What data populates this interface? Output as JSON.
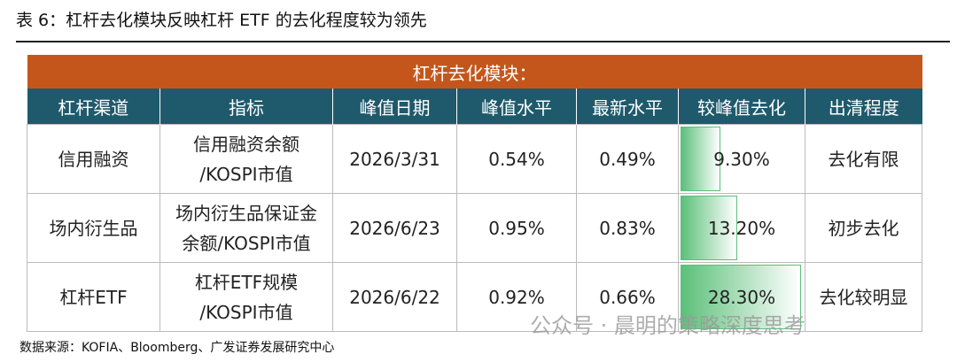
{
  "header": {
    "title": "表 6：杠杆去化模块反映杠杆 ETF 的去化程度较为领先"
  },
  "table": {
    "section_title": "杠杆去化模块：",
    "columns": [
      "杠杆渠道",
      "指标",
      "峰值日期",
      "峰值水平",
      "最新水平",
      "较峰值去化",
      "出清程度"
    ],
    "rows": [
      [
        "信用融资",
        "信用融资余额\n/KOSPI市值",
        "2026/3/31",
        "0.54%",
        "0.49%",
        "9.30%",
        "去化有限"
      ],
      [
        "场内衍生品",
        "场内衍生品保证金\n余额/KOSPI市值",
        "2026/6/23",
        "0.95%",
        "0.83%",
        "13.20%",
        "初步去化"
      ],
      [
        "杠杆ETF",
        "杠杆ETF规模\n/KOSPI市值",
        "2026/6/22",
        "0.92%",
        "0.66%",
        "28.30%",
        "去化较明显"
      ]
    ]
  },
  "footer": {
    "source": "数据来源：KOFIA、Bloomberg、广发证券发展研究中心",
    "watermark": "公众号 · 晨明的策略深度思考"
  }
}
